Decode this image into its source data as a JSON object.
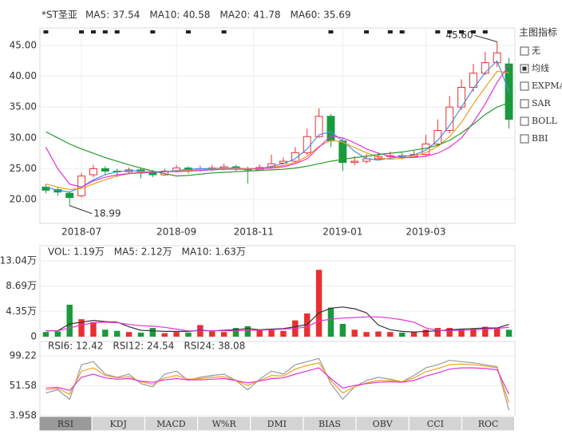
{
  "chart_data": [
    {
      "type": "candlestick",
      "title": "*ST圣亚",
      "xlim": [
        -0.5,
        39.5
      ],
      "xticks": [
        {
          "value": 3,
          "label": "2018-07"
        },
        {
          "value": 11,
          "label": "2018-09"
        },
        {
          "value": 17.5,
          "label": "2018-11"
        },
        {
          "value": 25,
          "label": "2019-01"
        },
        {
          "value": 32,
          "label": "2019-03"
        }
      ],
      "ylim": [
        16.11,
        47.85
      ],
      "yticks": [
        {
          "value": 20,
          "label": "20.00"
        },
        {
          "value": 25,
          "label": "25.00"
        },
        {
          "value": 30,
          "label": "30.00"
        },
        {
          "value": 35,
          "label": "35.00"
        },
        {
          "value": 40,
          "label": "40.00"
        },
        {
          "value": 45,
          "label": "45.00"
        }
      ],
      "grid": true,
      "up_color": "#e93030",
      "down_color": "#1a9a3c",
      "open": [
        22.0,
        21.6,
        21.0,
        20.6,
        24.0,
        25.0,
        24.6,
        24.5,
        24.8,
        24.3,
        24.0,
        24.6,
        25.1,
        24.8,
        25.0,
        25.1,
        25.3,
        25.0,
        24.8,
        25.3,
        25.9,
        26.2,
        27.6,
        30.2,
        33.5,
        29.5,
        26.0,
        26.2,
        26.6,
        27.0,
        27.1,
        27.0,
        27.3,
        29.0,
        31.2,
        35.0,
        38.2,
        40.5,
        42.2,
        42.0
      ],
      "high": [
        22.5,
        22.0,
        21.3,
        24.3,
        25.6,
        25.4,
        25.0,
        25.2,
        25.1,
        24.8,
        25.0,
        25.6,
        25.4,
        25.5,
        25.6,
        25.8,
        25.6,
        25.3,
        25.7,
        27.3,
        26.8,
        28.5,
        31.5,
        34.8,
        33.9,
        30.0,
        27.0,
        27.4,
        27.6,
        27.8,
        27.6,
        27.9,
        30.5,
        33.0,
        36.8,
        39.5,
        42.0,
        44.0,
        45.6,
        43.0
      ],
      "low": [
        21.0,
        20.6,
        18.99,
        20.3,
        23.6,
        24.0,
        23.6,
        24.1,
        23.4,
        23.6,
        23.8,
        24.4,
        24.2,
        24.5,
        24.6,
        24.7,
        24.6,
        22.6,
        24.6,
        25.0,
        25.7,
        26.0,
        27.2,
        30.0,
        28.5,
        24.6,
        25.5,
        25.8,
        26.3,
        26.6,
        26.5,
        26.8,
        27.0,
        28.5,
        30.7,
        34.5,
        37.5,
        40.2,
        41.5,
        31.5
      ],
      "close": [
        21.5,
        21.2,
        20.3,
        23.8,
        25.0,
        24.6,
        24.5,
        24.8,
        24.3,
        24.0,
        24.6,
        25.1,
        24.8,
        25.0,
        25.1,
        25.3,
        25.0,
        24.8,
        25.2,
        25.8,
        26.2,
        27.6,
        30.2,
        33.5,
        29.5,
        26.0,
        26.2,
        26.6,
        27.0,
        27.1,
        27.0,
        27.3,
        29.0,
        31.2,
        35.0,
        38.2,
        40.5,
        42.2,
        43.8,
        33.0
      ],
      "annotations": [
        {
          "value": 18.99,
          "label": "18.99"
        },
        {
          "value": 45.6,
          "label": "45.60"
        }
      ],
      "series": [
        {
          "name": "MA5: 37.54",
          "color": "#4a8ee6",
          "values": [
            22.0,
            21.5,
            21.2,
            22.0,
            23.2,
            24.0,
            24.5,
            24.7,
            24.6,
            24.4,
            24.5,
            24.7,
            24.9,
            25.0,
            25.0,
            25.1,
            25.1,
            25.0,
            25.0,
            25.4,
            25.8,
            26.6,
            28.2,
            30.5,
            31.0,
            29.5,
            27.8,
            26.6,
            26.4,
            26.7,
            27.0,
            27.2,
            28.0,
            29.6,
            32.0,
            35.0,
            38.0,
            40.6,
            42.5,
            37.5
          ]
        },
        {
          "name": "MA10: 40.58",
          "color": "#e8a020",
          "values": [
            22.5,
            22.0,
            21.6,
            21.8,
            22.5,
            23.2,
            23.8,
            24.2,
            24.5,
            24.5,
            24.5,
            24.6,
            24.7,
            24.8,
            24.9,
            25.0,
            25.0,
            25.0,
            25.0,
            25.2,
            25.5,
            26.0,
            27.0,
            28.6,
            29.6,
            29.3,
            28.4,
            27.6,
            26.8,
            26.5,
            26.7,
            27.0,
            27.6,
            28.6,
            30.2,
            32.5,
            35.5,
            38.2,
            40.8,
            40.6
          ]
        },
        {
          "name": "MA20: 41.78",
          "color": "#e432d8",
          "values": [
            28.5,
            25.0,
            22.5,
            22.0,
            23.0,
            23.6,
            24.0,
            24.2,
            24.3,
            24.4,
            24.5,
            24.5,
            24.6,
            24.7,
            24.8,
            24.9,
            24.9,
            24.9,
            25.0,
            25.1,
            25.3,
            25.8,
            26.6,
            28.5,
            30.3,
            30.0,
            29.2,
            28.2,
            27.5,
            27.0,
            26.8,
            26.8,
            27.0,
            27.5,
            28.5,
            30.0,
            32.5,
            35.5,
            39.0,
            41.8
          ]
        },
        {
          "name": "MA60: 35.69",
          "color": "#2a9a2a",
          "values": [
            31.0,
            30.0,
            29.0,
            28.2,
            27.5,
            26.8,
            26.2,
            25.6,
            25.1,
            24.6,
            24.2,
            23.8,
            23.9,
            24.1,
            24.3,
            24.4,
            24.5,
            24.6,
            24.7,
            24.8,
            24.9,
            25.1,
            25.4,
            25.8,
            26.2,
            26.5,
            26.8,
            27.0,
            27.3,
            27.5,
            27.7,
            28.0,
            28.3,
            28.8,
            29.6,
            30.8,
            32.2,
            33.8,
            35.0,
            35.7
          ]
        }
      ]
    },
    {
      "type": "bar",
      "xlim": [
        -0.5,
        39.5
      ],
      "ylim": [
        0,
        15.65
      ],
      "yticks": [
        0,
        {
          "value": 4.35,
          "label": "4.35万"
        },
        {
          "value": 8.69,
          "label": "8.69万"
        },
        {
          "value": 13.04,
          "label": "13.04万"
        }
      ],
      "grid": true,
      "series": [
        {
          "name": "VOL: 1.19万",
          "color": "#e070e8",
          "values": [
            0.8,
            0.9,
            5.5,
            3.0,
            2.5,
            1.2,
            1.0,
            0.8,
            0.7,
            1.5,
            0.6,
            0.8,
            0.7,
            2.0,
            0.9,
            0.8,
            1.5,
            1.8,
            1.2,
            1.3,
            1.0,
            2.8,
            4.0,
            11.5,
            5.0,
            2.2,
            1.2,
            0.8,
            0.9,
            0.8,
            0.7,
            0.9,
            1.2,
            1.5,
            1.5,
            1.3,
            1.4,
            1.7,
            1.5,
            1.19
          ]
        },
        {
          "name": "MA5: 2.12万",
          "color": "#333333",
          "values": [
            1.0,
            1.0,
            2.2,
            2.5,
            2.8,
            2.6,
            2.5,
            1.7,
            1.1,
            1.0,
            0.9,
            0.9,
            0.9,
            1.1,
            1.0,
            1.1,
            1.2,
            1.4,
            1.2,
            1.3,
            1.4,
            1.7,
            2.1,
            4.1,
            4.9,
            5.1,
            4.8,
            4.1,
            2.0,
            1.2,
            0.9,
            0.8,
            0.9,
            1.0,
            1.2,
            1.3,
            1.4,
            1.5,
            1.5,
            2.12
          ]
        },
        {
          "name": "MA10: 1.63万",
          "color": "#e432d8",
          "values": [
            1.0,
            1.0,
            1.5,
            2.0,
            2.4,
            2.5,
            2.4,
            2.1,
            1.9,
            1.8,
            1.6,
            1.3,
            1.0,
            1.0,
            1.0,
            1.0,
            1.0,
            1.1,
            1.1,
            1.2,
            1.3,
            1.4,
            1.7,
            2.7,
            3.0,
            3.2,
            3.3,
            3.4,
            3.4,
            3.2,
            2.9,
            2.5,
            1.5,
            1.1,
            1.0,
            1.1,
            1.2,
            1.3,
            1.4,
            1.63
          ]
        }
      ]
    },
    {
      "type": "line",
      "xlim": [
        -0.5,
        39.5
      ],
      "ylim": [
        2.69,
        122.1
      ],
      "yticks": [
        3.958,
        51.58,
        99.22
      ],
      "grid": true,
      "series": [
        {
          "name": "RSI6: 12.42",
          "color": "#999999",
          "values": [
            40,
            45,
            30,
            85,
            90,
            70,
            65,
            70,
            55,
            50,
            70,
            75,
            60,
            65,
            68,
            70,
            60,
            45,
            62,
            75,
            70,
            85,
            90,
            95,
            55,
            30,
            50,
            60,
            65,
            62,
            58,
            68,
            80,
            85,
            92,
            90,
            88,
            85,
            82,
            12.42
          ]
        },
        {
          "name": "RSI12: 24.54",
          "color": "#f0a020",
          "values": [
            45,
            47,
            38,
            75,
            80,
            68,
            64,
            66,
            58,
            54,
            64,
            68,
            62,
            63,
            65,
            66,
            60,
            52,
            60,
            68,
            67,
            78,
            84,
            88,
            60,
            40,
            50,
            56,
            60,
            60,
            58,
            64,
            74,
            79,
            85,
            86,
            85,
            83,
            80,
            24.54
          ]
        },
        {
          "name": "RSI24: 38.08",
          "color": "#e432d8",
          "values": [
            48,
            49,
            44,
            65,
            70,
            64,
            62,
            63,
            59,
            57,
            61,
            63,
            61,
            61,
            62,
            63,
            60,
            56,
            59,
            63,
            64,
            70,
            75,
            80,
            63,
            48,
            52,
            55,
            57,
            58,
            57,
            60,
            67,
            72,
            78,
            80,
            80,
            79,
            77,
            38.08
          ]
        }
      ]
    }
  ],
  "indicator_panel": {
    "title": "主图指标",
    "options": [
      {
        "label": "无",
        "checked": false
      },
      {
        "label": "均线",
        "checked": true
      },
      {
        "label": "EXPMA",
        "checked": false
      },
      {
        "label": "SAR",
        "checked": false
      },
      {
        "label": "BOLL",
        "checked": false
      },
      {
        "label": "BBI",
        "checked": false
      }
    ]
  },
  "tabs": [
    "RSI",
    "KDJ",
    "MACD",
    "W%R",
    "DMI",
    "BIAS",
    "OBV",
    "CCI",
    "ROC"
  ]
}
